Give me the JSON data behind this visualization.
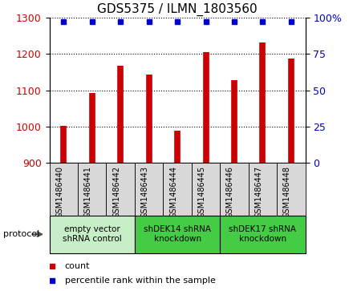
{
  "title": "GDS5375 / ILMN_1803560",
  "samples": [
    "GSM1486440",
    "GSM1486441",
    "GSM1486442",
    "GSM1486443",
    "GSM1486444",
    "GSM1486445",
    "GSM1486446",
    "GSM1486447",
    "GSM1486448"
  ],
  "counts": [
    1003,
    1093,
    1168,
    1143,
    988,
    1204,
    1128,
    1232,
    1188
  ],
  "percentiles": [
    97,
    97,
    97,
    97,
    97,
    97,
    97,
    97,
    97
  ],
  "ylim_left": [
    900,
    1300
  ],
  "ylim_right": [
    0,
    100
  ],
  "yticks_left": [
    900,
    1000,
    1100,
    1200,
    1300
  ],
  "yticks_right": [
    0,
    25,
    50,
    75,
    100
  ],
  "bar_color": "#cc0000",
  "dot_color": "#0000cc",
  "group_labels": [
    "empty vector\nshRNA control",
    "shDEK14 shRNA\nknockdown",
    "shDEK17 shRNA\nknockdown"
  ],
  "group_starts": [
    0,
    3,
    6
  ],
  "group_ends": [
    3,
    6,
    9
  ],
  "group_color_1": "#c8eec8",
  "group_color_2": "#44cc44",
  "sample_box_color": "#d8d8d8",
  "legend_count_label": "count",
  "legend_percentile_label": "percentile rank within the sample",
  "protocol_label": "protocol",
  "tick_label_color_left": "#cc0000",
  "tick_label_color_right": "#0000cc",
  "title_fontsize": 11,
  "axis_fontsize": 9,
  "sample_fontsize": 7,
  "group_fontsize": 7.5,
  "legend_fontsize": 8
}
